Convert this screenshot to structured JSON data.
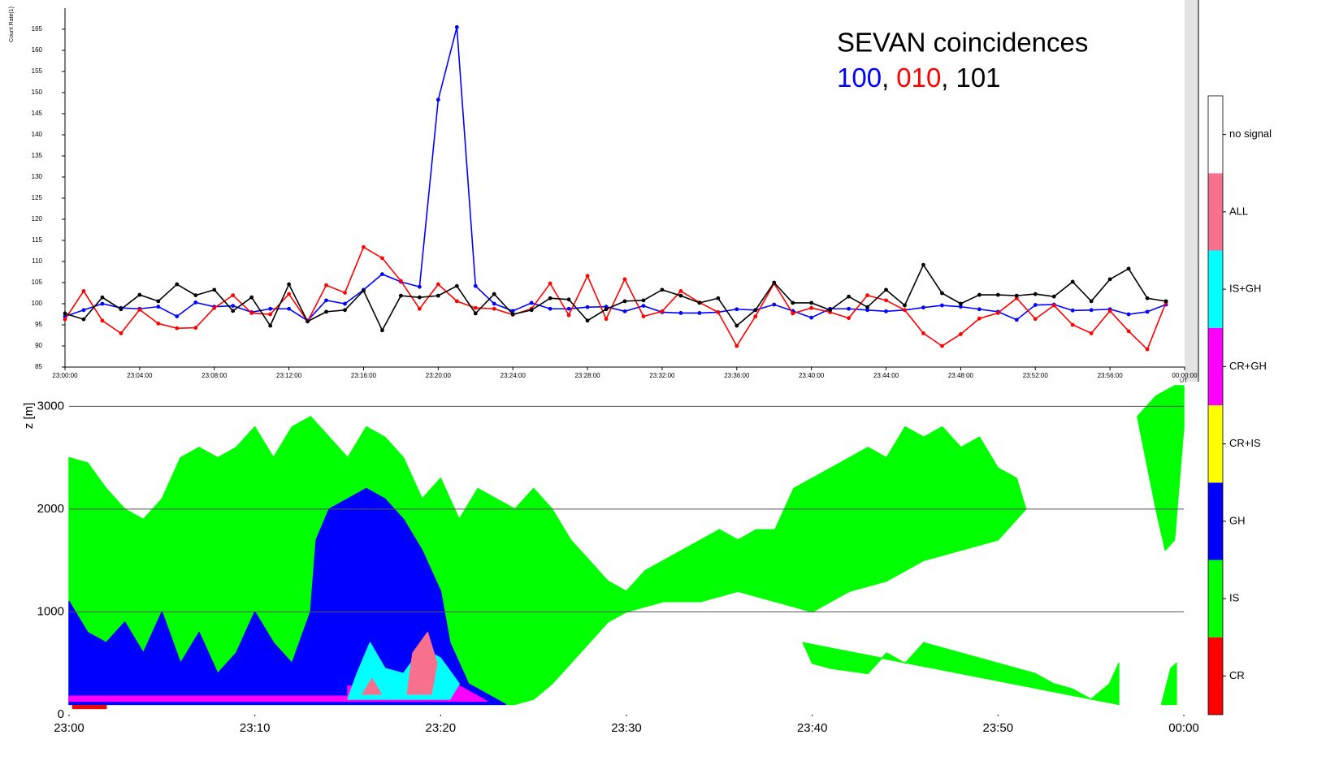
{
  "chart_data": [
    {
      "type": "line",
      "title": "SEVAN coincidences",
      "legend_separator": ",",
      "y_label": "Count Rate(1)",
      "x_unit": "UT",
      "x": [
        "23:00:00",
        "23:01:00",
        "23:02:00",
        "23:03:00",
        "23:04:00",
        "23:05:00",
        "23:06:00",
        "23:07:00",
        "23:08:00",
        "23:09:00",
        "23:10:00",
        "23:11:00",
        "23:12:00",
        "23:13:00",
        "23:14:00",
        "23:15:00",
        "23:16:00",
        "23:17:00",
        "23:18:00",
        "23:19:00",
        "23:20:00",
        "23:21:00",
        "23:22:00",
        "23:23:00",
        "23:24:00",
        "23:25:00",
        "23:26:00",
        "23:27:00",
        "23:28:00",
        "23:29:00",
        "23:30:00",
        "23:31:00",
        "23:32:00",
        "23:33:00",
        "23:34:00",
        "23:35:00",
        "23:36:00",
        "23:37:00",
        "23:38:00",
        "23:39:00",
        "23:40:00",
        "23:41:00",
        "23:42:00",
        "23:43:00",
        "23:44:00",
        "23:45:00",
        "23:46:00",
        "23:47:00",
        "23:48:00",
        "23:49:00",
        "23:50:00",
        "23:51:00",
        "23:52:00",
        "23:53:00",
        "23:54:00",
        "23:55:00",
        "23:56:00",
        "23:57:00",
        "23:58:00",
        "23:59:00"
      ],
      "xlim": [
        "23:00:00",
        "00:00:00"
      ],
      "xticks": [
        "23:00:00",
        "23:04:00",
        "23:08:00",
        "23:12:00",
        "23:16:00",
        "23:20:00",
        "23:24:00",
        "23:28:00",
        "23:32:00",
        "23:36:00",
        "23:40:00",
        "23:44:00",
        "23:48:00",
        "23:52:00",
        "23:56:00",
        "00:00:00"
      ],
      "ylim": [
        85,
        170
      ],
      "yticks": [
        85,
        90,
        95,
        100,
        105,
        110,
        115,
        120,
        125,
        130,
        135,
        140,
        145,
        150,
        155,
        160,
        165
      ],
      "series": [
        {
          "name": "100",
          "color": "#0000ff",
          "values": [
            97,
            98.5,
            100,
            99,
            98.8,
            99.3,
            97,
            100.3,
            99.3,
            99.5,
            98,
            98.8,
            98.8,
            96,
            100.8,
            100,
            103.3,
            107,
            105.2,
            104,
            148.3,
            165.5,
            104.2,
            100,
            98.3,
            100.2,
            98.8,
            98.8,
            99.2,
            99.3,
            98.2,
            99.5,
            98,
            97.8,
            97.8,
            98,
            98.7,
            98.5,
            99.8,
            98.3,
            96.7,
            98.8,
            98.8,
            98.5,
            98.2,
            98.5,
            99.1,
            99.6,
            99.3,
            98.7,
            98.1,
            96.2,
            99.7,
            99.8,
            98.4,
            98.5,
            98.7,
            97.5,
            98.1,
            99.8
          ]
        },
        {
          "name": "010",
          "color": "#ff0000",
          "values": [
            96.3,
            103,
            96,
            93,
            98.6,
            95.3,
            94.2,
            94.3,
            99,
            102,
            97.8,
            97.5,
            102.3,
            95.8,
            104.4,
            102.6,
            113.4,
            110.8,
            105.4,
            98.8,
            104.6,
            100.6,
            99,
            98.8,
            97.4,
            98.8,
            104.8,
            97.3,
            106.6,
            96.4,
            105.8,
            97,
            98.2,
            103,
            100.3,
            98,
            90,
            97,
            104.8,
            97.7,
            99,
            98,
            96.6,
            102,
            100.8,
            98.5,
            93,
            90,
            92.8,
            96.5,
            97.8,
            101.3,
            96.4,
            99.6,
            95,
            93,
            98.3,
            93.5,
            89.2,
            100.3
          ]
        },
        {
          "name": "101",
          "color": "#000000",
          "values": [
            97.7,
            96.3,
            101.5,
            98.7,
            102.1,
            100.6,
            104.6,
            102,
            103.3,
            98.3,
            101.5,
            94.8,
            104.6,
            95.8,
            98.1,
            98.5,
            103.1,
            93.7,
            101.9,
            101.5,
            101.9,
            104.2,
            97.7,
            102.3,
            97.5,
            98.5,
            101.3,
            101,
            96,
            98.7,
            100.6,
            100.8,
            103.3,
            101.9,
            100.2,
            101.3,
            94.8,
            98.5,
            105,
            100.2,
            100.2,
            98.5,
            101.7,
            99.2,
            103.3,
            99.6,
            109.2,
            102.5,
            100,
            102.1,
            102.1,
            101.9,
            102.3,
            101.7,
            105.2,
            100.6,
            105.8,
            108.3,
            101.3,
            100.6
          ]
        }
      ]
    },
    {
      "type": "area",
      "y_label": "z [m]",
      "xlim": [
        0,
        60
      ],
      "xticks": [
        {
          "value": 0,
          "label": "23:00"
        },
        {
          "value": 10,
          "label": "23:10"
        },
        {
          "value": 20,
          "label": "23:20"
        },
        {
          "value": 30,
          "label": "23:30"
        },
        {
          "value": 40,
          "label": "23:40"
        },
        {
          "value": 50,
          "label": "23:50"
        },
        {
          "value": 60,
          "label": "00:00"
        }
      ],
      "ylim": [
        0,
        3200
      ],
      "yticks": [
        0,
        1000,
        2000,
        3000
      ],
      "grid": true,
      "classes": [
        {
          "name": "CR",
          "color": "#ff0000",
          "regions": [
            {
              "x": [
                0.2,
                0.2,
                2,
                2
              ],
              "z": [
                60,
                100,
                100,
                60
              ]
            }
          ]
        },
        {
          "name": "IS",
          "color": "#00ff00",
          "regions": [
            {
              "x": [
                0,
                0,
                1,
                2,
                3,
                4,
                5,
                6,
                7,
                8,
                9,
                10,
                11,
                12,
                13,
                14,
                15,
                16,
                17,
                18,
                19,
                20,
                21,
                22,
                23,
                24,
                25,
                26,
                27,
                28,
                29,
                30,
                31,
                32,
                33,
                34,
                35,
                36,
                37,
                38,
                39,
                40,
                41,
                42,
                43,
                44,
                45,
                46,
                47,
                48,
                49,
                50,
                51,
                51.5,
                50,
                48,
                46,
                44,
                42,
                40,
                38,
                36,
                34,
                32,
                30,
                29,
                28,
                27,
                26,
                25,
                24
              ],
              "z": [
                100,
                2500,
                2450,
                2200,
                2000,
                1900,
                2100,
                2500,
                2600,
                2500,
                2600,
                2800,
                2500,
                2800,
                2900,
                2700,
                2500,
                2800,
                2700,
                2500,
                2100,
                2300,
                1900,
                2200,
                2100,
                2000,
                2200,
                2000,
                1700,
                1500,
                1300,
                1200,
                1400,
                1500,
                1600,
                1700,
                1800,
                1700,
                1800,
                1800,
                2200,
                2300,
                2400,
                2500,
                2600,
                2500,
                2800,
                2700,
                2800,
                2600,
                2700,
                2400,
                2300,
                2000,
                1700,
                1600,
                1500,
                1300,
                1200,
                1000,
                1100,
                1200,
                1100,
                1100,
                1000,
                900,
                700,
                500,
                300,
                150,
                100
              ]
            },
            {
              "x": [
                39.5,
                40,
                41,
                43,
                44,
                45,
                46,
                48,
                50,
                52,
                53,
                54,
                55,
                56,
                56.5,
                56.5
              ],
              "z": [
                700,
                500,
                450,
                400,
                600,
                500,
                700,
                600,
                500,
                400,
                300,
                250,
                150,
                300,
                500,
                100
              ]
            },
            {
              "x": [
                57.5,
                58.5,
                59.5,
                60,
                60,
                59.5,
                59,
                58.5
              ],
              "z": [
                2900,
                3100,
                3200,
                3200,
                2800,
                1700,
                1600,
                2000
              ]
            },
            {
              "x": [
                58.8,
                59.3,
                59.6,
                59.6
              ],
              "z": [
                100,
                450,
                500,
                100
              ]
            }
          ]
        },
        {
          "name": "GH",
          "color": "#0000ff",
          "regions": [
            {
              "x": [
                0,
                0,
                1,
                2,
                3,
                4,
                5,
                6,
                7,
                8,
                9,
                10,
                11,
                12,
                13,
                13.3,
                14,
                15,
                16,
                17,
                18,
                19,
                20,
                20.5,
                21,
                21.5,
                23.5
              ],
              "z": [
                100,
                1100,
                800,
                700,
                900,
                600,
                1000,
                500,
                800,
                400,
                600,
                1000,
                700,
                500,
                1000,
                1700,
                2000,
                2100,
                2200,
                2100,
                1900,
                1600,
                1200,
                700,
                500,
                300,
                100
              ]
            }
          ]
        },
        {
          "name": "CR+IS",
          "color": "#ffff00",
          "regions": []
        },
        {
          "name": "CR+GH",
          "color": "#ff00ff",
          "regions": [
            {
              "x": [
                0,
                0,
                15,
                15,
                21,
                22.5
              ],
              "z": [
                130,
                180,
                180,
                280,
                280,
                130
              ]
            }
          ]
        },
        {
          "name": "IS+GH",
          "color": "#00ffff",
          "regions": [
            {
              "x": [
                15,
                15.5,
                16.2,
                17,
                18,
                19,
                20,
                21,
                20.5
              ],
              "z": [
                150,
                400,
                700,
                450,
                400,
                650,
                550,
                300,
                150
              ]
            }
          ]
        },
        {
          "name": "ALL",
          "color": "#f7718f",
          "regions": [
            {
              "x": [
                18.2,
                18.5,
                19.3,
                19.8,
                19.5
              ],
              "z": [
                200,
                600,
                800,
                500,
                200
              ]
            },
            {
              "x": [
                15.8,
                16.3,
                16.8
              ],
              "z": [
                200,
                350,
                200
              ]
            }
          ]
        },
        {
          "name": "no signal",
          "color": "#ffffff",
          "regions": []
        }
      ]
    }
  ]
}
